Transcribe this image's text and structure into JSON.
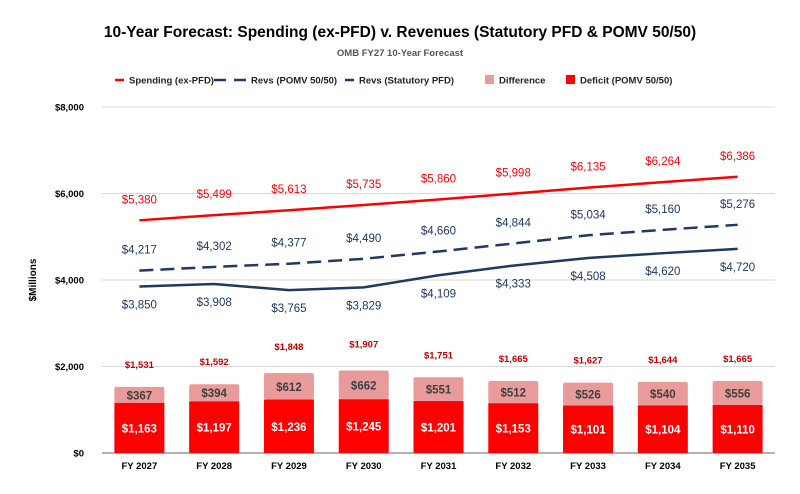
{
  "chart_data": {
    "type": "bar",
    "title": "10-Year Forecast: Spending (ex-PFD) v. Revenues (Statutory PFD & POMV 50/50)",
    "subtitle": "OMB FY27 10-Year Forecast",
    "ylabel": "$Millions",
    "xlabel": "",
    "ylim": [
      0,
      8000
    ],
    "yticks": [
      "$0",
      "$2,000",
      "$4,000",
      "$6,000",
      "$8,000"
    ],
    "ytick_values": [
      0,
      2000,
      4000,
      6000,
      8000
    ],
    "grid": true,
    "legend_position": "top",
    "categories": [
      "FY 2027",
      "FY 2028",
      "FY 2029",
      "FY 2030",
      "FY 2031",
      "FY 2032",
      "FY 2033",
      "FY 2034",
      "FY 2035"
    ],
    "lines": [
      {
        "name": "Spending (ex-PFD)",
        "style": "solid",
        "color": "#ff0000",
        "label_color": "#ff0000",
        "label_pos": "above",
        "values": [
          5380,
          5499,
          5613,
          5735,
          5860,
          5998,
          6135,
          6264,
          6386
        ],
        "labels": [
          "$5,380",
          "$5,499",
          "$5,613",
          "$5,735",
          "$5,860",
          "$5,998",
          "$6,135",
          "$6,264",
          "$6,386"
        ]
      },
      {
        "name": "Revs (POMV 50/50)",
        "style": "dashed",
        "color": "#1f3864",
        "label_color": "#1f3864",
        "label_pos": "above",
        "values": [
          4217,
          4302,
          4377,
          4490,
          4660,
          4844,
          5034,
          5160,
          5276
        ],
        "labels": [
          "$4,217",
          "$4,302",
          "$4,377",
          "$4,490",
          "$4,660",
          "$4,844",
          "$5,034",
          "$5,160",
          "$5,276"
        ]
      },
      {
        "name": "Revs (Statutory PFD)",
        "style": "solid",
        "color": "#1f3864",
        "label_color": "#1f3864",
        "label_pos": "below",
        "values": [
          3850,
          3908,
          3765,
          3829,
          4109,
          4333,
          4508,
          4620,
          4720
        ],
        "labels": [
          "$3,850",
          "$3,908",
          "$3,765",
          "$3,829",
          "$4,109",
          "$4,333",
          "$4,508",
          "$4,620",
          "$4,720"
        ]
      }
    ],
    "bars": [
      {
        "name": "Deficit (POMV 50/50)",
        "color": "#ff0000",
        "label_color": "#ffffff",
        "values": [
          1163,
          1197,
          1236,
          1245,
          1201,
          1153,
          1101,
          1104,
          1110
        ],
        "labels": [
          "$1,163",
          "$1,197",
          "$1,236",
          "$1,245",
          "$1,201",
          "$1,153",
          "$1,101",
          "$1,104",
          "$1,110"
        ]
      },
      {
        "name": "Difference",
        "color": "#e99a9a",
        "label_color": "#404040",
        "values": [
          367,
          394,
          612,
          662,
          551,
          512,
          526,
          540,
          556
        ],
        "labels": [
          "$367",
          "$394",
          "$612",
          "$662",
          "$551",
          "$512",
          "$526",
          "$540",
          "$556"
        ]
      }
    ],
    "totals": {
      "color": "#c00000",
      "values": [
        1531,
        1592,
        1848,
        1907,
        1751,
        1665,
        1627,
        1644,
        1665
      ],
      "labels": [
        "$1,531",
        "$1,592",
        "$1,848",
        "$1,907",
        "$1,751",
        "$1,665",
        "$1,627",
        "$1,644",
        "$1,665"
      ]
    },
    "legend": [
      {
        "name": "Spending (ex-PFD)",
        "marker": "line",
        "color": "#ff0000"
      },
      {
        "name": "Revs (POMV 50/50)",
        "marker": "dashed-line",
        "color": "#1f3864"
      },
      {
        "name": "Revs (Statutory PFD)",
        "marker": "line",
        "color": "#1f3864"
      },
      {
        "name": "Difference",
        "marker": "square",
        "color": "#e99a9a"
      },
      {
        "name": "Deficit (POMV 50/50)",
        "marker": "square",
        "color": "#ff0000"
      }
    ]
  }
}
